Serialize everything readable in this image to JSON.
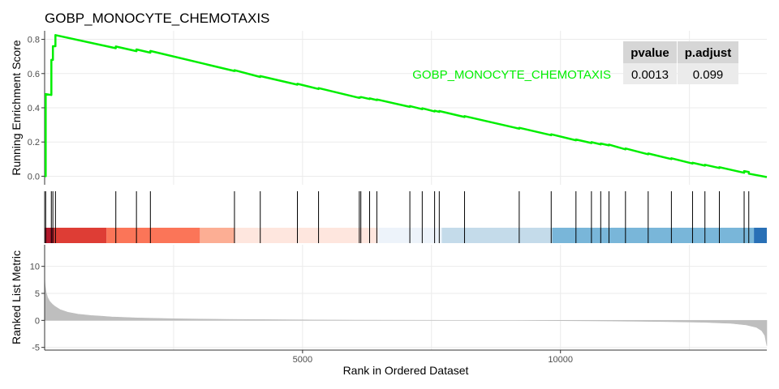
{
  "chart_data": {
    "type": "line",
    "title": "GOBP_MONOCYTE_CHEMOTAXIS",
    "xlabel": "Rank in Ordered Dataset",
    "xlim": [
      0,
      14000
    ],
    "x_ticks": [
      5000,
      10000
    ],
    "x_tick_labels": [
      "5000",
      "10000"
    ],
    "x_grid": [
      2500,
      5000,
      7500,
      10000,
      12500
    ],
    "colors": {
      "line": "#00ee00",
      "segment": "#000000",
      "metric_fill": "#bebebe",
      "grid": "#ebebeb"
    },
    "running_score": {
      "ylabel": "Running Enrichment Score",
      "ylim": [
        -0.05,
        0.85
      ],
      "y_ticks": [
        0.0,
        0.2,
        0.4,
        0.6,
        0.8
      ],
      "y_tick_labels": [
        "0.0",
        "0.2",
        "0.4",
        "0.6",
        "0.8"
      ],
      "series": [
        {
          "name": "GOBP_MONOCYTE_CHEMOTAXIS",
          "x": [
            0,
            20,
            20,
            130,
            130,
            160,
            160,
            210,
            210,
            1380,
            1380,
            1780,
            1780,
            2050,
            2050,
            3680,
            3680,
            4180,
            4180,
            4900,
            4900,
            5310,
            5310,
            6100,
            6100,
            6130,
            6130,
            6300,
            6300,
            6440,
            6440,
            7080,
            7080,
            7320,
            7320,
            7560,
            7560,
            7650,
            7650,
            8140,
            8140,
            9200,
            9200,
            9820,
            9820,
            10300,
            10300,
            10600,
            10600,
            10780,
            10780,
            10940,
            10940,
            11260,
            11260,
            11700,
            11700,
            12150,
            12150,
            12560,
            12560,
            12800,
            12800,
            13080,
            13080,
            13560,
            13560,
            13650,
            13650,
            14000
          ],
          "y": [
            0.0,
            0.0,
            0.48,
            0.475,
            0.68,
            0.68,
            0.76,
            0.76,
            0.825,
            0.748,
            0.758,
            0.731,
            0.741,
            0.722,
            0.732,
            0.615,
            0.62,
            0.58,
            0.585,
            0.535,
            0.54,
            0.51,
            0.515,
            0.458,
            0.461,
            0.46,
            0.463,
            0.451,
            0.455,
            0.445,
            0.449,
            0.405,
            0.41,
            0.392,
            0.397,
            0.378,
            0.383,
            0.376,
            0.381,
            0.346,
            0.351,
            0.278,
            0.283,
            0.24,
            0.245,
            0.21,
            0.215,
            0.194,
            0.199,
            0.186,
            0.191,
            0.18,
            0.185,
            0.157,
            0.162,
            0.128,
            0.133,
            0.1,
            0.105,
            0.074,
            0.079,
            0.062,
            0.067,
            0.048,
            0.053,
            0.02,
            0.03,
            0.025,
            0.015,
            -0.005
          ]
        }
      ]
    },
    "hit_positions": [
      20,
      130,
      160,
      210,
      1380,
      1780,
      2050,
      3680,
      4180,
      4900,
      5310,
      6100,
      6130,
      6300,
      6440,
      7080,
      7320,
      7560,
      7650,
      8140,
      9200,
      9820,
      10300,
      10600,
      10780,
      10940,
      11260,
      11700,
      12150,
      12560,
      12800,
      13080,
      13560,
      13650
    ],
    "rank_color_bands": [
      {
        "from": 0,
        "to": 180,
        "color": "#b2182b"
      },
      {
        "from": 180,
        "to": 1200,
        "color": "#de3d35"
      },
      {
        "from": 1200,
        "to": 3010,
        "color": "#fb7558"
      },
      {
        "from": 3010,
        "to": 3690,
        "color": "#fcae94"
      },
      {
        "from": 3690,
        "to": 6460,
        "color": "#fee6de"
      },
      {
        "from": 6460,
        "to": 7700,
        "color": "#edf3fa"
      },
      {
        "from": 7700,
        "to": 9840,
        "color": "#c4dbea"
      },
      {
        "from": 9840,
        "to": 13750,
        "color": "#79b6d9"
      },
      {
        "from": 13750,
        "to": 14000,
        "color": "#2970b6"
      }
    ],
    "ranked_metric": {
      "ylabel": "Ranked List Metric",
      "ylim": [
        -5.5,
        14
      ],
      "y_ticks": [
        -5,
        0,
        5,
        10
      ],
      "y_tick_labels": [
        "-5",
        "0",
        "5",
        "10"
      ],
      "profile": {
        "x": [
          0,
          10,
          30,
          60,
          100,
          150,
          200,
          300,
          450,
          650,
          900,
          1300,
          1800,
          2500,
          3500,
          5000,
          6000,
          7000,
          8000,
          9000,
          10000,
          11000,
          12000,
          12800,
          13300,
          13600,
          13800,
          13900,
          13960,
          14000
        ],
        "y": [
          8.0,
          6.5,
          5.2,
          4.2,
          3.5,
          3.0,
          2.6,
          2.0,
          1.5,
          1.15,
          0.9,
          0.65,
          0.45,
          0.3,
          0.2,
          0.1,
          0.05,
          0.02,
          0.0,
          0.0,
          -0.05,
          -0.12,
          -0.22,
          -0.35,
          -0.55,
          -0.85,
          -1.3,
          -1.9,
          -2.8,
          -4.7
        ]
      }
    },
    "stats_table": {
      "headers": [
        "pvalue",
        "p.adjust"
      ],
      "values": [
        "0.0013",
        "0.099"
      ]
    },
    "annotation": "GOBP_MONOCYTE_CHEMOTAXIS"
  }
}
